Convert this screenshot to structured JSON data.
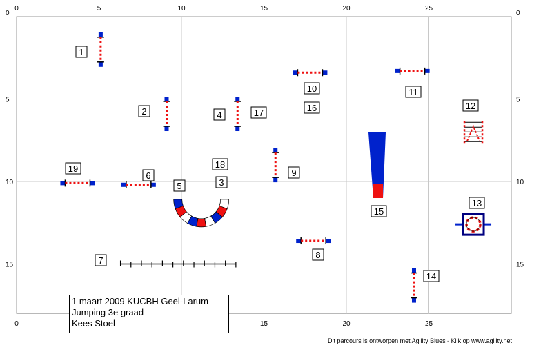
{
  "course_map": {
    "x_ticks": [
      "0",
      "5",
      "10",
      "15",
      "20",
      "25"
    ],
    "y_ticks": [
      "0",
      "5",
      "10",
      "15"
    ],
    "obstacles": [
      {
        "number": "1",
        "type": "hurdle",
        "x": 5.1,
        "y": 2.0,
        "orientation": "vertical"
      },
      {
        "number": "2",
        "type": "hurdle",
        "x": 9.1,
        "y": 5.9,
        "orientation": "vertical"
      },
      {
        "number": "3",
        "type": "tunnel",
        "x": 11.2,
        "y": 11.5
      },
      {
        "number": "4",
        "type": "hurdle",
        "x": 13.4,
        "y": 5.9,
        "orientation": "vertical"
      },
      {
        "number": "5",
        "type": "tunnel",
        "x": 11.2,
        "y": 11.5
      },
      {
        "number": "6",
        "type": "hurdle",
        "x": 7.4,
        "y": 10.2,
        "orientation": "horizontal"
      },
      {
        "number": "7",
        "type": "weave",
        "x": 10.2,
        "y": 15.0
      },
      {
        "number": "8",
        "type": "hurdle",
        "x": 18.0,
        "y": 13.6,
        "orientation": "horizontal"
      },
      {
        "number": "9",
        "type": "hurdle",
        "x": 15.7,
        "y": 9.0,
        "orientation": "vertical"
      },
      {
        "number": "10",
        "type": "hurdle",
        "x": 17.8,
        "y": 3.4,
        "orientation": "horizontal"
      },
      {
        "number": "11",
        "type": "hurdle",
        "x": 24.0,
        "y": 3.3,
        "orientation": "horizontal"
      },
      {
        "number": "12",
        "type": "wall",
        "x": 27.7,
        "y": 7.0
      },
      {
        "number": "13",
        "type": "tyre",
        "x": 27.7,
        "y": 12.6
      },
      {
        "number": "14",
        "type": "hurdle",
        "x": 24.1,
        "y": 16.3,
        "orientation": "vertical"
      },
      {
        "number": "15",
        "type": "aframe",
        "x": 21.8,
        "y": 8.6
      },
      {
        "number": "16",
        "type": "label",
        "x": 18.0,
        "y": 5.5
      },
      {
        "number": "17",
        "type": "label",
        "x": 14.9,
        "y": 6.3
      },
      {
        "number": "18",
        "type": "label",
        "x": 12.3,
        "y": 9.0
      },
      {
        "number": "19",
        "type": "hurdle",
        "x": 3.7,
        "y": 10.1,
        "orientation": "horizontal"
      }
    ]
  },
  "info": {
    "line1": "1 maart 2009 KUCBH Geel-Larum",
    "line2": "Jumping 3e graad",
    "line3": "Kees Stoel"
  },
  "footer": "Dit parcours is ontworpen met Agility Blues - Kijk op www.agility.net",
  "colors": {
    "blue": "#0022cc",
    "red": "#ee1111",
    "grid": "#c8c8c8",
    "tyre": "#000080"
  }
}
